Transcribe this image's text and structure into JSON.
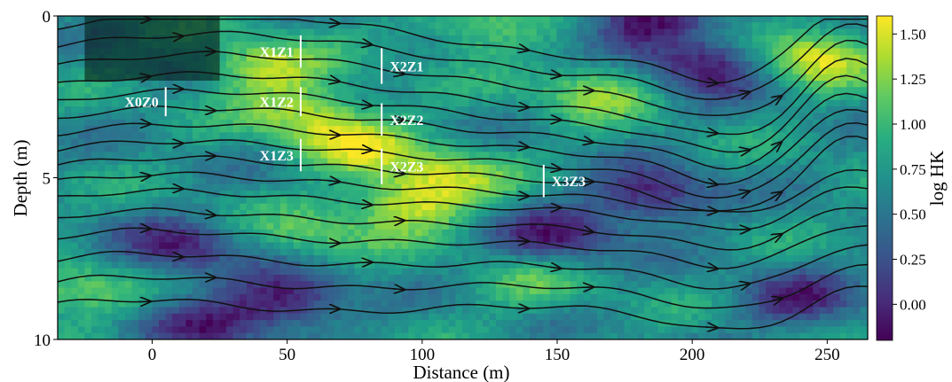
{
  "chart_data": {
    "type": "heatmap",
    "title": "",
    "xlabel": "Distance (m)",
    "ylabel": "Depth (m)",
    "xlim": [
      -35,
      265
    ],
    "ylim": [
      10,
      0
    ],
    "xticks": [
      "0",
      "50",
      "100",
      "150",
      "200",
      "250"
    ],
    "yticks": [
      "0",
      "5",
      "10"
    ],
    "colorbar": {
      "label": "log HK",
      "range": [
        -0.2,
        1.6
      ],
      "ticks": [
        "0.00",
        "0.25",
        "0.50",
        "0.75",
        "1.00",
        "1.25",
        "1.50"
      ],
      "colormap": "viridis"
    },
    "shaded_region": {
      "x": [
        -25,
        25
      ],
      "depth": [
        0,
        2
      ]
    },
    "wells": [
      {
        "label": "X0Z0",
        "x": 5,
        "depth": [
          2.2,
          3.1
        ]
      },
      {
        "label": "X1Z1",
        "x": 55,
        "depth": [
          0.6,
          1.6
        ]
      },
      {
        "label": "X1Z2",
        "x": 55,
        "depth": [
          2.2,
          3.1
        ]
      },
      {
        "label": "X1Z3",
        "x": 55,
        "depth": [
          3.8,
          4.8
        ]
      },
      {
        "label": "X2Z1",
        "x": 85,
        "depth": [
          1.0,
          2.1
        ]
      },
      {
        "label": "X2Z2",
        "x": 85,
        "depth": [
          2.7,
          3.7
        ]
      },
      {
        "label": "X2Z3",
        "x": 85,
        "depth": [
          4.1,
          5.2
        ]
      },
      {
        "label": "X3Z3",
        "x": 145,
        "depth": [
          4.6,
          5.6
        ]
      }
    ],
    "high_zones": [
      {
        "x": 40,
        "depth": 1.6,
        "value": 1.4
      },
      {
        "x": 60,
        "depth": 3.0,
        "value": 1.35
      },
      {
        "x": 75,
        "depth": 4.0,
        "value": 1.3
      },
      {
        "x": 95,
        "depth": 5.8,
        "value": 1.5
      },
      {
        "x": 110,
        "depth": 4.8,
        "value": 1.25
      },
      {
        "x": 165,
        "depth": 2.2,
        "value": 1.3
      },
      {
        "x": 120,
        "depth": 0.4,
        "value": 1.2
      },
      {
        "x": 245,
        "depth": 1.2,
        "value": 1.55
      },
      {
        "x": 60,
        "depth": 6.8,
        "value": 1.1
      },
      {
        "x": -30,
        "depth": 8.5,
        "value": 1.2
      },
      {
        "x": 140,
        "depth": 8.3,
        "value": 1.0
      }
    ],
    "low_zones": [
      {
        "x": 205,
        "depth": 1.5,
        "value": -0.2
      },
      {
        "x": 180,
        "depth": 0.2,
        "value": -0.1
      },
      {
        "x": 50,
        "depth": 8.8,
        "value": -0.15
      },
      {
        "x": 10,
        "depth": 7.2,
        "value": 0.0
      },
      {
        "x": 185,
        "depth": 5.6,
        "value": -0.1
      },
      {
        "x": 150,
        "depth": 6.8,
        "value": 0.0
      },
      {
        "x": 240,
        "depth": 8.8,
        "value": 0.05
      },
      {
        "x": 20,
        "depth": 9.6,
        "value": 0.1
      }
    ]
  }
}
